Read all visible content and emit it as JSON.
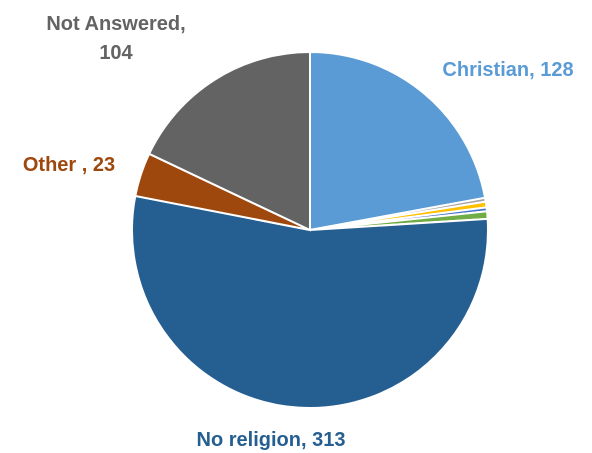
{
  "chart_data": {
    "type": "pie",
    "start_angle_deg": 0,
    "direction": "clockwise",
    "slices": [
      {
        "label": "Christian",
        "value": 128,
        "color": "#5b9bd5",
        "label_text": [
          "Christian,  128"
        ],
        "label_color": "#5b9bd5",
        "label_visible": true
      },
      {
        "label": "",
        "value": 2,
        "color": "#a5a5a5",
        "label_text": [],
        "label_visible": false
      },
      {
        "label": "",
        "value": 3,
        "color": "#ffc000",
        "label_text": [],
        "label_visible": false
      },
      {
        "label": "",
        "value": 2,
        "color": "#4472c4",
        "label_text": [],
        "label_visible": false
      },
      {
        "label": "",
        "value": 4,
        "color": "#70ad47",
        "label_text": [],
        "label_visible": false
      },
      {
        "label": "No religion",
        "value": 313,
        "color": "#255e91",
        "label_text": [
          "No religion, 313"
        ],
        "label_color": "#255e91",
        "label_visible": true
      },
      {
        "label": "Other",
        "value": 23,
        "color": "#9e480e",
        "label_text": [
          "Other , 23"
        ],
        "label_color": "#9e480e",
        "label_visible": true
      },
      {
        "label": "Not Answered",
        "value": 104,
        "color": "#636363",
        "label_text": [
          "Not Answered,",
          "104"
        ],
        "label_color": "#636363",
        "label_visible": true
      }
    ]
  }
}
